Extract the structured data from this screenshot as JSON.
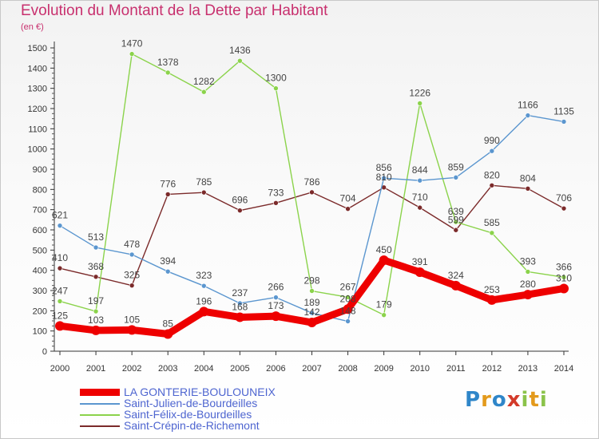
{
  "chart_data": {
    "type": "line",
    "title": "Evolution du Montant de la Dette par Habitant",
    "subtitle": "(en €)",
    "x": [
      "2000",
      "2001",
      "2002",
      "2003",
      "2004",
      "2005",
      "2006",
      "2007",
      "2008",
      "2009",
      "2010",
      "2011",
      "2012",
      "2013",
      "2014"
    ],
    "ylim": [
      0,
      1500
    ],
    "yticks": [
      0,
      100,
      200,
      300,
      400,
      500,
      600,
      700,
      800,
      900,
      1000,
      1100,
      1200,
      1300,
      1400,
      1500
    ],
    "grid": false,
    "legend_position": "bottom-left",
    "series": [
      {
        "name": "LA GONTERIE-BOULOUNEIX",
        "color": "#ee0000",
        "values": [
          125,
          103,
          105,
          85,
          196,
          168,
          173,
          142,
          208,
          450,
          391,
          324,
          253,
          280,
          310
        ],
        "labels": [
          "125",
          "103",
          "105",
          "85",
          "196",
          "168",
          "173",
          "142",
          "208",
          "450",
          "391",
          "324",
          "253",
          "280",
          "310"
        ]
      },
      {
        "name": "Saint-Julien-de-Bourdeilles",
        "color": "#5b96cf",
        "values": [
          621,
          513,
          478,
          394,
          323,
          237,
          266,
          189,
          148,
          856,
          844,
          859,
          990,
          1166,
          1135
        ],
        "labels": [
          "621",
          "513",
          "478",
          "394",
          "323",
          "237",
          "266",
          "189",
          "148",
          "856",
          "844",
          "859",
          "990",
          "1166",
          "1135"
        ]
      },
      {
        "name": "Saint-Félix-de-Bourdeilles",
        "color": "#8bd34b",
        "values": [
          247,
          197,
          1470,
          1378,
          1282,
          1436,
          1300,
          298,
          267,
          179,
          1226,
          639,
          585,
          393,
          366
        ],
        "labels": [
          "247",
          "197",
          "1470",
          "1378",
          "1282",
          "1436",
          "1300",
          "298",
          "267",
          "179",
          "1226",
          "639",
          "585",
          "393",
          "366"
        ]
      },
      {
        "name": "Saint-Crépin-de-Richemont",
        "color": "#7b2a2a",
        "values": [
          410,
          368,
          325,
          776,
          785,
          696,
          733,
          786,
          704,
          810,
          710,
          599,
          820,
          804,
          706
        ],
        "labels": [
          "410",
          "368",
          "325",
          "776",
          "785",
          "696",
          "733",
          "786",
          "704",
          "810",
          "710",
          "599",
          "820",
          "804",
          "706"
        ]
      }
    ]
  },
  "legend": {
    "items": [
      {
        "label": "LA GONTERIE-BOULOUNEIX",
        "color": "#ee0000"
      },
      {
        "label": "Saint-Julien-de-Bourdeilles",
        "color": "#5b96cf"
      },
      {
        "label": "Saint-Félix-de-Bourdeilles",
        "color": "#8bd34b"
      },
      {
        "label": "Saint-Crépin-de-Richemont",
        "color": "#7b2a2a"
      }
    ]
  },
  "logo": {
    "letters": [
      "P",
      "r",
      "o",
      "x",
      "i",
      "t",
      "i"
    ],
    "colors": [
      "#2f86c9",
      "#e39a1c",
      "#2f86c9",
      "#d33a2a",
      "#8bc34a",
      "#e39a1c",
      "#8bc34a"
    ]
  }
}
